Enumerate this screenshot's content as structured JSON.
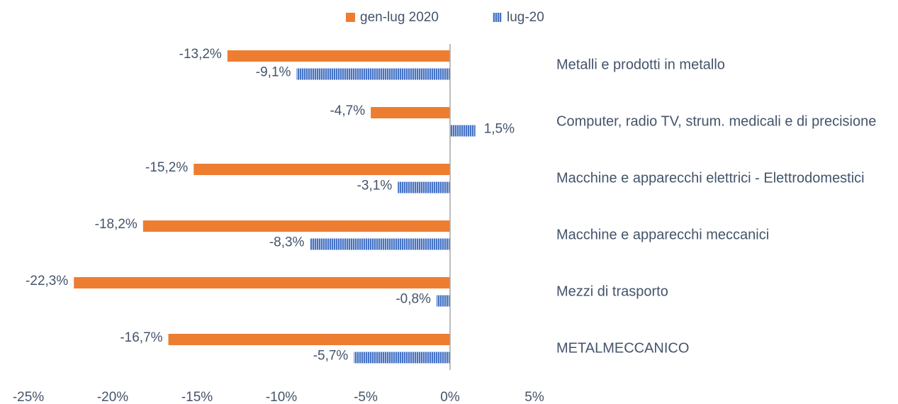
{
  "chart_data": {
    "type": "hbar",
    "categories": [
      "Metalli e prodotti in metallo",
      "Computer, radio TV, strum. medicali e di precisione",
      "Macchine e apparecchi elettrici - Elettrodomestici",
      "Macchine e apparecchi meccanici",
      "Mezzi di trasporto",
      "METALMECCANICO"
    ],
    "series": [
      {
        "name": "gen-lug 2020",
        "color": "#ed7d31",
        "values": [
          -13.2,
          -4.7,
          -15.2,
          -18.2,
          -22.3,
          -16.7
        ],
        "value_labels": [
          "-13,2%",
          "-4,7%",
          "-15,2%",
          "-18,2%",
          "-22,3%",
          "-16,7%"
        ]
      },
      {
        "name": "lug-20",
        "color": "#4472c4",
        "values": [
          -9.1,
          1.5,
          -3.1,
          -8.3,
          -0.8,
          -5.7
        ],
        "value_labels": [
          "-9,1%",
          "1,5%",
          "-3,1%",
          "-8,3%",
          "-0,8%",
          "-5,7%"
        ]
      }
    ],
    "xlim": [
      -25,
      5
    ],
    "xticks": [
      {
        "value": -25,
        "label": "-25%"
      },
      {
        "value": -20,
        "label": "-20%"
      },
      {
        "value": -15,
        "label": "-15%"
      },
      {
        "value": -10,
        "label": "-10%"
      },
      {
        "value": -5,
        "label": "-5%"
      },
      {
        "value": 0,
        "label": "0%"
      },
      {
        "value": 5,
        "label": "5%"
      }
    ],
    "legend": "top"
  }
}
